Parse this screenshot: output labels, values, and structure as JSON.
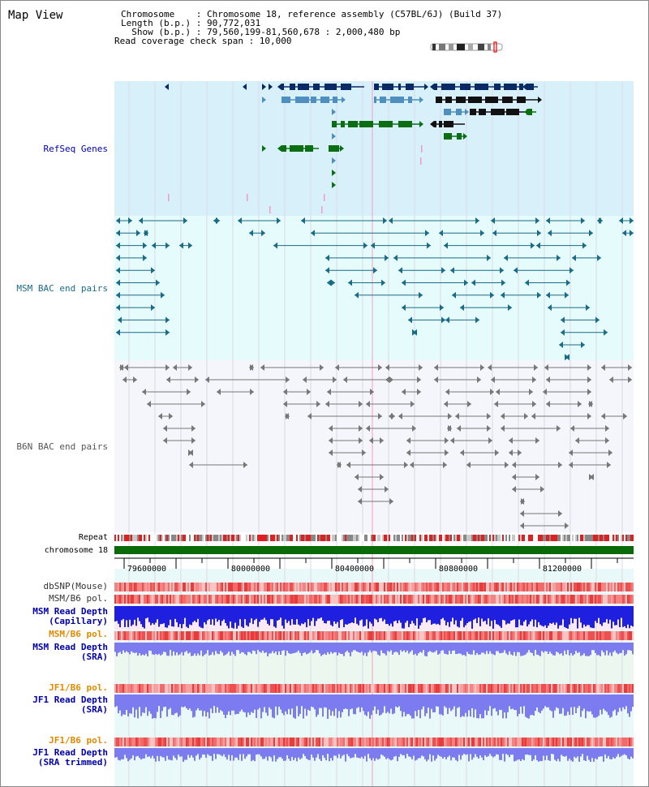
{
  "title": "Map View",
  "info": {
    "chromosome_line": "Chromosome    : Chromosome 18, reference assembly (C57BL/6J) (Build 37)",
    "length_line": "Length (b.p.) : 90,772,031",
    "show_line": "  Show (b.p.) : 79,560,199-81,560,678 : 2,000,480 bp",
    "span_line": "Read coverage check span : 10,000"
  },
  "tracks": {
    "refseq": "RefSeq Genes",
    "msm_bac": "MSM BAC end pairs",
    "b6n_bac": "B6N BAC end pairs",
    "repeat": "Repeat",
    "chromosome": "chromosome 18",
    "dbsnp": "dbSNP(Mouse)",
    "msm_b6_pol_1": "MSM/B6 pol.",
    "msm_read_depth_cap_1": "MSM Read Depth",
    "msm_read_depth_cap_2": "(Capillary)",
    "msm_b6_pol_2": "MSM/B6 pol.",
    "msm_read_depth_sra_1": "MSM Read Depth",
    "msm_read_depth_sra_2": "(SRA)",
    "jf1_b6_pol_1": "JF1/B6 pol.",
    "jf1_read_depth_sra_1": "JF1 Read Depth",
    "jf1_read_depth_sra_2": "(SRA)",
    "jf1_b6_pol_2": "JF1/B6 pol.",
    "jf1_read_depth_trim_1": "JF1 Read Depth",
    "jf1_read_depth_trim_2": "(SRA trimmed)"
  },
  "axis_ticks": [
    "79600000",
    "80000000",
    "80400000",
    "80800000",
    "81200000"
  ],
  "colors": {
    "refseq_bg": "#d8f0fa",
    "msm_bg": "#e6fbfb",
    "b6n_bg": "#f4f6fb",
    "navy": "#0a2a66",
    "steel": "#4f8fbf",
    "green": "#0b6e12",
    "teal": "#1a6b86",
    "grey": "#777777",
    "chromosome": "#0a6a0a",
    "depth_blue": "#1f1fe0",
    "depth_light": "#7c7cf0",
    "label_teal": "#1a6b86",
    "label_blue": "#0000aa",
    "label_orange": "#e08a00"
  }
}
